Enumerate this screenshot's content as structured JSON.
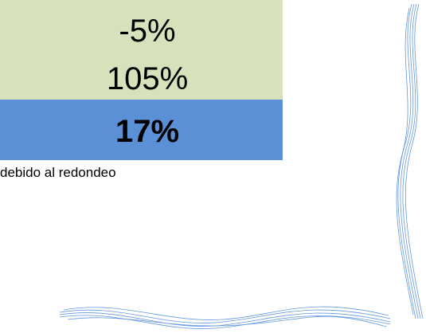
{
  "table": {
    "rows": [
      [
        "-5%"
      ],
      [
        "105%"
      ],
      [
        "17%"
      ]
    ]
  },
  "footnote": "debido al redondeo"
}
